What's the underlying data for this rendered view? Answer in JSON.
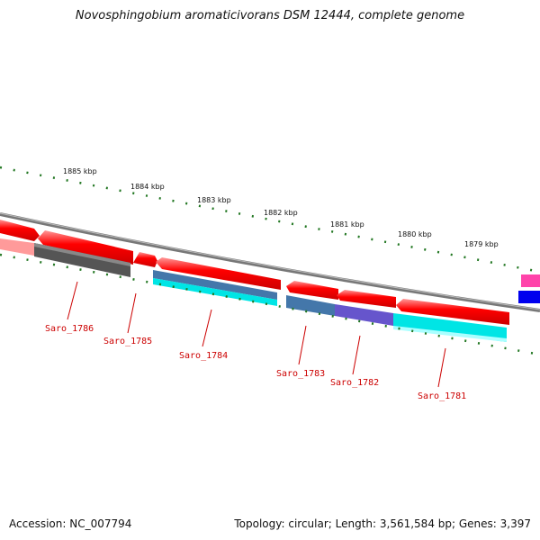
{
  "title": "Novosphingobium aromaticivorans DSM 12444, complete genome",
  "accession": "Accession: NC_007794",
  "summary": "Topology: circular; Length: 3,561,584 bp; Genes: 3,397",
  "scale_labels": [
    "1885 kbp",
    "1884 kbp",
    "1883 kbp",
    "1882 kbp",
    "1881 kbp",
    "1880 kbp",
    "1879 kbp"
  ],
  "genes": [
    {
      "name": "Saro_1786",
      "color": "#555555"
    },
    {
      "name": "Saro_1785",
      "color": "#ff0000"
    },
    {
      "name": "Saro_1784",
      "color": "#00e5e5"
    },
    {
      "name": "Saro_1783",
      "color": "#4477aa"
    },
    {
      "name": "Saro_1782",
      "color": "#6655cc"
    },
    {
      "name": "Saro_1781",
      "color": "#00e5e5"
    }
  ],
  "colors": {
    "backbone": "#777777",
    "scale": "#227722",
    "forward": "#ff0000",
    "label": "#cc0000",
    "magenta": "#ff44aa",
    "blue": "#0000ee"
  }
}
